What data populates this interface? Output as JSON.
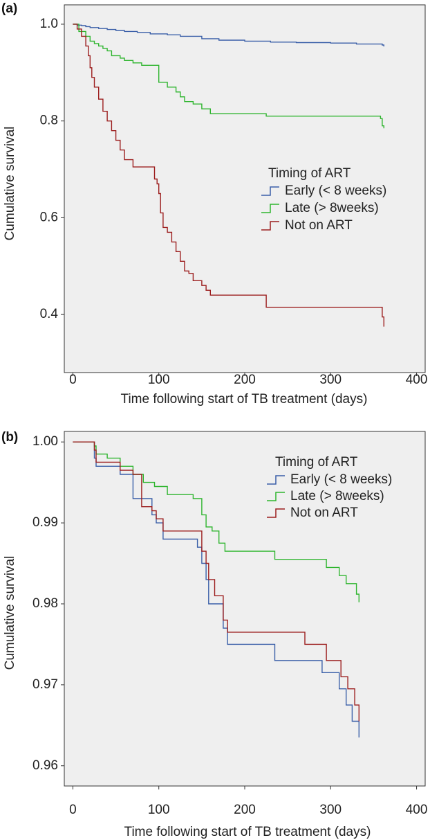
{
  "chart_data": [
    {
      "panel": "(a)",
      "type": "line",
      "step": true,
      "xlabel": "Time following start of TB treatment (days)",
      "ylabel": "Cumulative survival",
      "xlim": [
        -10,
        410
      ],
      "ylim": [
        0.28,
        1.04
      ],
      "xticks": [
        0,
        100,
        200,
        300,
        400
      ],
      "xtick_labels": [
        "0",
        "100",
        "200",
        "300",
        "400"
      ],
      "yticks": [
        1.0,
        0.8,
        0.6,
        0.4
      ],
      "ytick_labels": [
        "1.0",
        "0.8",
        "0.6",
        "0.4"
      ],
      "legend": {
        "title": "Timing of ART",
        "placement": "center-right"
      },
      "series": [
        {
          "name": "Early (< 8 weeks)",
          "color": "#3a5fa8",
          "x": [
            0,
            5,
            10,
            15,
            20,
            30,
            40,
            50,
            60,
            75,
            90,
            110,
            125,
            150,
            170,
            200,
            230,
            260,
            300,
            330,
            360,
            362
          ],
          "y": [
            1.0,
            0.998,
            0.997,
            0.995,
            0.993,
            0.991,
            0.989,
            0.987,
            0.985,
            0.983,
            0.98,
            0.978,
            0.975,
            0.97,
            0.967,
            0.965,
            0.963,
            0.962,
            0.961,
            0.959,
            0.957,
            0.954
          ]
        },
        {
          "name": "Late (> 8weeks)",
          "color": "#2fb52f",
          "x": [
            0,
            7,
            15,
            20,
            25,
            30,
            35,
            40,
            45,
            55,
            60,
            70,
            80,
            100,
            110,
            120,
            125,
            130,
            140,
            150,
            160,
            225,
            358,
            360,
            362
          ],
          "y": [
            1.0,
            0.985,
            0.975,
            0.965,
            0.96,
            0.955,
            0.95,
            0.945,
            0.935,
            0.93,
            0.925,
            0.92,
            0.915,
            0.88,
            0.87,
            0.86,
            0.85,
            0.84,
            0.835,
            0.825,
            0.815,
            0.81,
            0.805,
            0.79,
            0.785
          ]
        },
        {
          "name": "Not on ART",
          "color": "#9c1e1e",
          "x": [
            0,
            5,
            10,
            15,
            18,
            20,
            22,
            25,
            30,
            35,
            40,
            45,
            50,
            55,
            60,
            70,
            80,
            95,
            98,
            100,
            102,
            105,
            110,
            115,
            120,
            125,
            130,
            135,
            140,
            150,
            155,
            160,
            170,
            180,
            200,
            225,
            358,
            360,
            362
          ],
          "y": [
            1.0,
            0.99,
            0.975,
            0.955,
            0.935,
            0.91,
            0.89,
            0.87,
            0.845,
            0.82,
            0.8,
            0.78,
            0.76,
            0.74,
            0.72,
            0.705,
            0.705,
            0.68,
            0.67,
            0.65,
            0.61,
            0.58,
            0.57,
            0.55,
            0.53,
            0.51,
            0.49,
            0.485,
            0.47,
            0.46,
            0.45,
            0.44,
            0.44,
            0.44,
            0.44,
            0.415,
            0.415,
            0.395,
            0.375
          ]
        }
      ]
    },
    {
      "panel": "(b)",
      "type": "line",
      "step": true,
      "xlabel": "Time following start of TB treatment (days)",
      "ylabel": "Cumulative survival",
      "xlim": [
        -10,
        410
      ],
      "ylim": [
        0.9575,
        1.0013
      ],
      "xticks": [
        0,
        100,
        200,
        300,
        400
      ],
      "xtick_labels": [
        "0",
        "100",
        "200",
        "300",
        "400"
      ],
      "yticks": [
        1.0,
        0.99,
        0.98,
        0.97,
        0.96
      ],
      "ytick_labels": [
        "1.00",
        "0.99",
        "0.98",
        "0.97",
        "0.96"
      ],
      "legend": {
        "title": "Timing of ART",
        "placement": "top-right"
      },
      "series": [
        {
          "name": "Early (< 8 weeks)",
          "color": "#3a5fa8",
          "x": [
            0,
            25,
            27,
            45,
            55,
            70,
            80,
            92,
            97,
            105,
            120,
            145,
            150,
            155,
            158,
            165,
            175,
            180,
            200,
            235,
            270,
            290,
            310,
            318,
            325,
            333
          ],
          "y": [
            1.0,
            0.998,
            0.997,
            0.997,
            0.996,
            0.993,
            0.993,
            0.991,
            0.99,
            0.988,
            0.988,
            0.987,
            0.985,
            0.983,
            0.98,
            0.98,
            0.977,
            0.975,
            0.975,
            0.973,
            0.973,
            0.9715,
            0.9695,
            0.9675,
            0.9655,
            0.9635
          ]
        },
        {
          "name": "Late (> 8weeks)",
          "color": "#2fb52f",
          "x": [
            0,
            25,
            27,
            40,
            55,
            70,
            82,
            95,
            110,
            130,
            140,
            150,
            155,
            162,
            170,
            177,
            185,
            200,
            235,
            270,
            295,
            310,
            318,
            330,
            333
          ],
          "y": [
            1.0,
            0.9995,
            0.9985,
            0.998,
            0.997,
            0.996,
            0.995,
            0.9945,
            0.9935,
            0.9935,
            0.993,
            0.991,
            0.9895,
            0.989,
            0.9875,
            0.9865,
            0.9865,
            0.9865,
            0.9855,
            0.9855,
            0.9845,
            0.9835,
            0.9825,
            0.9812,
            0.9802
          ]
        },
        {
          "name": "Not on ART",
          "color": "#9c1e1e",
          "x": [
            0,
            25,
            27,
            45,
            55,
            70,
            80,
            92,
            97,
            105,
            120,
            145,
            150,
            155,
            158,
            165,
            175,
            180,
            200,
            235,
            270,
            295,
            312,
            320,
            328,
            333
          ],
          "y": [
            1.0,
            0.999,
            0.9975,
            0.9975,
            0.9965,
            0.996,
            0.992,
            0.9915,
            0.9905,
            0.989,
            0.989,
            0.989,
            0.9865,
            0.985,
            0.983,
            0.981,
            0.978,
            0.9765,
            0.9765,
            0.9765,
            0.975,
            0.973,
            0.971,
            0.9695,
            0.9675,
            0.9655
          ]
        }
      ]
    }
  ]
}
